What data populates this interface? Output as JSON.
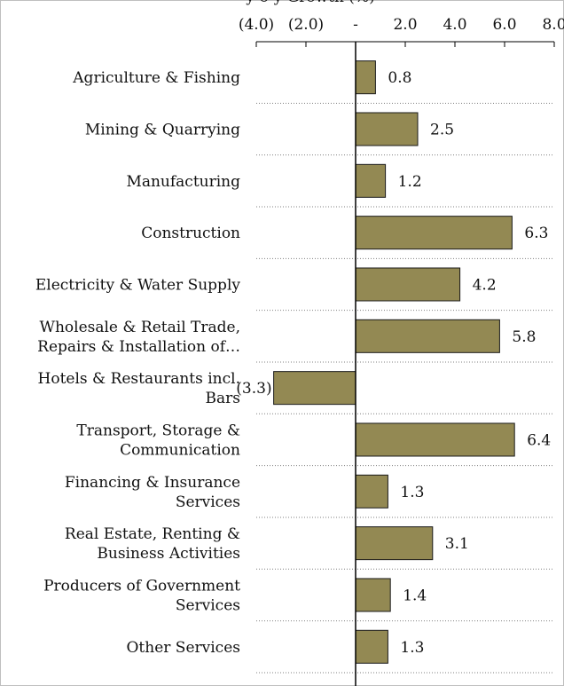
{
  "chart_data": {
    "type": "bar",
    "orientation": "horizontal",
    "title": "y-o-y Growth (%)",
    "categories": [
      [
        "Agriculture & Fishing"
      ],
      [
        "Mining & Quarrying"
      ],
      [
        "Manufacturing"
      ],
      [
        "Construction"
      ],
      [
        "Electricity & Water Supply"
      ],
      [
        "Wholesale & Retail Trade,",
        "Repairs & Installation of…"
      ],
      [
        "Hotels & Restaurants incl.",
        "Bars"
      ],
      [
        "Transport, Storage &",
        "Communication"
      ],
      [
        "Financing & Insurance",
        "Services"
      ],
      [
        "Real Estate, Renting &",
        "Business Activities"
      ],
      [
        "Producers of Government",
        "Services"
      ],
      [
        "Other Services"
      ]
    ],
    "values": [
      0.8,
      2.5,
      1.2,
      6.3,
      4.2,
      5.8,
      -3.3,
      6.4,
      1.3,
      3.1,
      1.4,
      1.3
    ],
    "value_labels": [
      "0.8",
      "2.5",
      "1.2",
      "6.3",
      "4.2",
      "5.8",
      "(3.3)",
      "6.4",
      "1.3",
      "3.1",
      "1.4",
      "1.3"
    ],
    "xlim": [
      -4.0,
      8.0
    ],
    "xticks": [
      -4.0,
      -2.0,
      0,
      2.0,
      4.0,
      6.0,
      8.0
    ],
    "xtick_labels": [
      "(4.0)",
      "(2.0)",
      "-",
      "2.0",
      "4.0",
      "6.0",
      "8.0"
    ],
    "axis_position": "top",
    "grid": false,
    "row_separators": "dotted",
    "colors": {
      "bar_fill": "#938953",
      "bar_stroke": "#1a1a1a",
      "axis": "#000000",
      "separator": "#7f7f7f"
    }
  }
}
